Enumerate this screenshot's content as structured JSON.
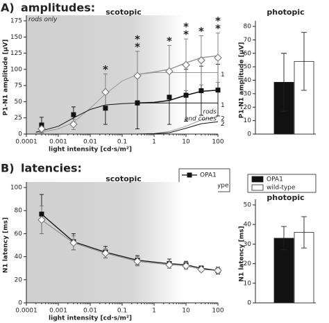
{
  "chart_data": [
    {
      "type": "scatter",
      "panel_label": "A)",
      "panel_title": "amplitudes:",
      "title": "scotopic",
      "xlabel": "light intensity [cd·s/m²]",
      "ylabel": "P1-N1 amplitude [µV]",
      "xscale": "log",
      "xlim": [
        0.0001,
        100
      ],
      "xticks": [
        0.0001,
        0.001,
        0.01,
        0.1,
        1,
        10,
        100
      ],
      "ylim": [
        0,
        175
      ],
      "yticks": [
        0,
        25,
        50,
        75,
        100,
        125,
        150,
        175
      ],
      "x": [
        0.0003,
        0.003,
        0.03,
        0.3,
        3,
        10,
        30,
        100
      ],
      "series": [
        {
          "name": "OPA1",
          "color": "#111111",
          "marker": "square",
          "values": [
            14,
            30,
            40,
            48,
            57,
            60,
            67,
            68
          ],
          "errors": [
            12,
            12,
            25,
            40,
            42,
            40,
            38,
            40
          ]
        },
        {
          "name": "wild-type",
          "color": "#777777",
          "marker": "diamond",
          "values": [
            8,
            15,
            65,
            90,
            97,
            107,
            114,
            118
          ],
          "errors": [
            6,
            8,
            28,
            38,
            40,
            40,
            38,
            38
          ]
        }
      ],
      "significance": [
        null,
        null,
        [
          "*"
        ],
        [
          "*",
          "*"
        ],
        [
          "*"
        ],
        [
          "*",
          "*"
        ],
        [
          "*"
        ],
        [
          "*",
          "*"
        ]
      ],
      "fits": [
        {
          "label": "1",
          "color": "#999999",
          "x": [
            0.0002,
            0.0003,
            0.001,
            0.003,
            0.01,
            0.03,
            0.1,
            0.3,
            1,
            3,
            10,
            30,
            100
          ],
          "values": [
            2,
            3,
            8,
            18,
            40,
            62,
            82,
            92,
            95,
            95,
            95,
            95,
            95
          ]
        },
        {
          "color": "#999999",
          "x": [
            0.3,
            1,
            3,
            10,
            30,
            100
          ],
          "values": [
            92,
            96,
            100,
            110,
            118,
            121
          ]
        },
        {
          "label": "2",
          "color": "#999999",
          "x": [
            0.3,
            1,
            3,
            10,
            30,
            100
          ],
          "values": [
            0,
            1,
            4,
            12,
            22,
            27
          ]
        },
        {
          "label": "1",
          "color": "#111111",
          "x": [
            0.0002,
            0.0003,
            0.001,
            0.003,
            0.01,
            0.03,
            0.1,
            0.3,
            1,
            3,
            10,
            30,
            100
          ],
          "values": [
            3,
            5,
            12,
            25,
            38,
            45,
            47,
            48,
            48,
            48,
            48,
            48,
            48
          ]
        },
        {
          "color": "#111111",
          "x": [
            0.3,
            1,
            3,
            10,
            30,
            100
          ],
          "values": [
            48,
            49,
            52,
            60,
            66,
            68
          ]
        },
        {
          "label": "2",
          "color": "#111111",
          "x": [
            0.3,
            1,
            3,
            10,
            30,
            100
          ],
          "values": [
            0,
            0.5,
            2,
            9,
            16,
            19
          ]
        }
      ],
      "annotations": [
        "rods only",
        "rods",
        "and cones"
      ],
      "legend": "bottom-right"
    },
    {
      "type": "bar",
      "title": "photopic",
      "ylabel": "P1-N1 amplitude [µV]",
      "ylim": [
        0,
        80
      ],
      "yticks": [
        0,
        10,
        20,
        30,
        40,
        50,
        60,
        70,
        80
      ],
      "series": [
        {
          "name": "OPA1",
          "color": "#111111",
          "values": [
            38.5
          ],
          "errors": [
            21.5
          ]
        },
        {
          "name": "wild-type",
          "color": "#ffffff",
          "values": [
            54
          ],
          "errors": [
            21.5
          ]
        }
      ],
      "legend": "below"
    },
    {
      "type": "scatter",
      "panel_label": "B)",
      "panel_title": "latencies:",
      "title": "scotopic",
      "xlabel": "light intensity [cd·s/m²]",
      "ylabel": "N1 latency [ms]",
      "xscale": "log",
      "xlim": [
        0.0001,
        100
      ],
      "xticks": [
        0.0001,
        0.001,
        0.01,
        0.1,
        1,
        10,
        100
      ],
      "ylim": [
        0,
        100
      ],
      "yticks": [
        0,
        20,
        40,
        60,
        80,
        100
      ],
      "x": [
        0.0003,
        0.003,
        0.03,
        0.3,
        3,
        10,
        30,
        100
      ],
      "lines": true,
      "series": [
        {
          "color": "#111111",
          "marker": "square",
          "values": [
            77,
            53,
            44,
            37,
            34,
            33,
            30,
            28
          ],
          "errors": [
            17,
            7,
            5,
            4,
            4,
            3,
            2,
            3
          ]
        },
        {
          "color": "#777777",
          "marker": "diamond",
          "values": [
            72,
            52,
            43,
            36,
            33,
            32,
            29,
            28
          ],
          "errors": [
            12,
            6,
            4,
            4,
            3,
            3,
            2,
            2
          ]
        }
      ]
    },
    {
      "type": "bar",
      "title": "photopic",
      "ylabel": "N1 latency [ms]",
      "ylim": [
        0,
        50
      ],
      "yticks": [
        0,
        10,
        20,
        30,
        40,
        50
      ],
      "series": [
        {
          "color": "#111111",
          "values": [
            33
          ],
          "errors": [
            6
          ]
        },
        {
          "color": "#ffffff",
          "values": [
            36
          ],
          "errors": [
            8
          ]
        }
      ]
    }
  ]
}
